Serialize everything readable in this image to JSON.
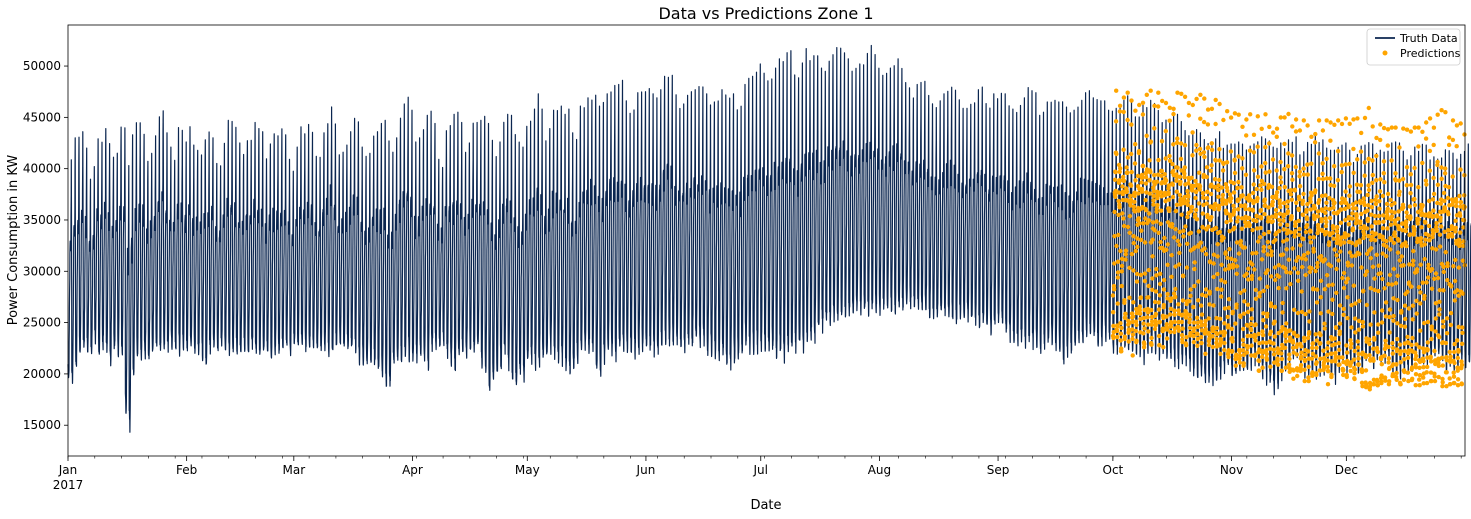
{
  "chart_data": {
    "type": "line",
    "title": "Data vs Predictions Zone 1",
    "xlabel": "Date",
    "ylabel": "Power Consumption in KW",
    "ylim": [
      12000,
      54000
    ],
    "yticks": [
      15000,
      20000,
      25000,
      30000,
      35000,
      40000,
      45000,
      50000
    ],
    "xlim": [
      "2017-01-01",
      "2017-12-31"
    ],
    "xticks": [
      {
        "date": "2017-01-01",
        "label": "Jan",
        "sublabel": "2017"
      },
      {
        "date": "2017-02-01",
        "label": "Feb",
        "sublabel": ""
      },
      {
        "date": "2017-03-01",
        "label": "Mar",
        "sublabel": ""
      },
      {
        "date": "2017-04-01",
        "label": "Apr",
        "sublabel": ""
      },
      {
        "date": "2017-05-01",
        "label": "May",
        "sublabel": ""
      },
      {
        "date": "2017-06-01",
        "label": "Jun",
        "sublabel": ""
      },
      {
        "date": "2017-07-01",
        "label": "Jul",
        "sublabel": ""
      },
      {
        "date": "2017-08-01",
        "label": "Aug",
        "sublabel": ""
      },
      {
        "date": "2017-09-01",
        "label": "Sep",
        "sublabel": ""
      },
      {
        "date": "2017-10-01",
        "label": "Oct",
        "sublabel": ""
      },
      {
        "date": "2017-11-01",
        "label": "Nov",
        "sublabel": ""
      },
      {
        "date": "2017-12-01",
        "label": "Dec",
        "sublabel": ""
      }
    ],
    "legend": {
      "placement": "top-right"
    },
    "series": [
      {
        "name": "Truth Data",
        "style": "line",
        "color": "#0b2650",
        "date_range": [
          "2017-01-01",
          "2017-12-31"
        ],
        "daily_min": [
          18500,
          18200,
          19800,
          21300,
          21700,
          21700,
          21200,
          22600,
          21100,
          21900,
          21200,
          20500,
          21600,
          21300,
          21200,
          15500,
          14000,
          18900,
          20500,
          20800,
          20900,
          20500,
          21100,
          21700,
          21300,
          21500,
          21600,
          21800,
          21500,
          21500,
          21800,
          21600,
          21600,
          21600,
          21300,
          20800,
          19800,
          21700,
          22000,
          21700,
          22000,
          21200,
          21200,
          21300,
          21300,
          21000,
          21500,
          21300,
          22000,
          21300,
          21000,
          21300,
          21700,
          20800,
          21100,
          21300,
          21800,
          22300,
          21200,
          22100,
          21800,
          21900,
          21600,
          21900,
          22200,
          21600,
          21500,
          21500,
          21200,
          21300,
          21800,
          22100,
          21800,
          21700,
          21800,
          21800,
          20500,
          20300,
          20400,
          20300,
          19900,
          19500,
          18600,
          18100,
          18100,
          20400,
          20500,
          20300,
          20700,
          20800,
          20500,
          20700,
          20800,
          20600,
          20000,
          21800,
          21900,
          22200,
          22000,
          21000,
          20100,
          19300,
          20800,
          21500,
          21200,
          21500,
          21400,
          21700,
          20200,
          19200,
          17300,
          18700,
          19300,
          19700,
          21100,
          19700,
          18700,
          17800,
          19400,
          18800,
          20400,
          20400,
          19800,
          20000,
          20600,
          20600,
          21300,
          20700,
          20500,
          20200,
          19300,
          19300,
          19700,
          20300,
          20900,
          21400,
          21300,
          21100,
          19300,
          19000,
          20500,
          20900,
          20900,
          20900,
          21100,
          21300,
          21500,
          21300,
          21000,
          21100,
          21200,
          21100,
          21200,
          21300,
          21200,
          21700,
          22400,
          22200,
          22000,
          22400,
          21900,
          21700,
          21800,
          22000,
          22000,
          21800,
          22000,
          21300,
          21100,
          20800,
          20700,
          20600,
          20100,
          20000,
          20200,
          20600,
          21300,
          21600,
          21600,
          21300,
          21500,
          21700,
          21700,
          21300,
          21200,
          20700,
          20900,
          20200,
          20800,
          21300,
          21100,
          21700,
          21300,
          22300,
          22500,
          22600,
          23100,
          23500,
          23900,
          24100,
          24300,
          24300,
          24500,
          24600,
          24800,
          25200,
          25400,
          25300,
          25000,
          25000,
          25200,
          25000,
          25400,
          25500,
          25700,
          25400,
          25300,
          25400,
          25600,
          25800,
          25900,
          25600,
          25500,
          25500,
          25300,
          24800,
          24800,
          24700,
          25300,
          25100,
          25100,
          24600,
          24200,
          24700,
          24500,
          24700,
          24300,
          24200,
          23800,
          23900,
          23600,
          23400,
          23700,
          24000,
          23800,
          23400,
          22800,
          22400,
          22100,
          22300,
          22200,
          22300,
          22000,
          21700,
          21300,
          21600,
          21900,
          22000,
          21500,
          21200,
          20300,
          20900,
          21200,
          21800,
          22100,
          21900,
          22500,
          23000,
          22400,
          22100,
          22000,
          22700,
          22500,
          21700,
          21300,
          21500,
          21900,
          21400,
          20900,
          21300,
          21000,
          20600,
          21100,
          21600,
          21300,
          21000,
          20900,
          20600,
          20700,
          20000,
          20100,
          20300,
          20500,
          19700,
          19000,
          18600,
          19200,
          18300,
          18300,
          18400,
          18300,
          18800,
          19400,
          19800,
          19000,
          19000,
          19200,
          19200,
          19300,
          20100,
          20500,
          19400,
          19200,
          18600,
          18200,
          17600,
          17600,
          18600,
          19600,
          19900,
          20500,
          20800,
          19900,
          19000,
          18900,
          19300,
          19200,
          19400,
          19300,
          19300,
          18700,
          18700,
          19400,
          19900,
          19600,
          20100,
          19400,
          19200,
          19700,
          20300,
          20300,
          19800,
          20500,
          20000,
          20400,
          20500,
          19400,
          19000,
          19100,
          19600,
          19400,
          19700,
          20100,
          20500,
          20400,
          20100,
          20800,
          21300,
          21000,
          20500,
          19700,
          19900,
          19700,
          19800,
          20300,
          20000,
          20100,
          20400,
          20600,
          20800,
          20500,
          20600,
          20500,
          20200,
          19800,
          19700,
          19700,
          19500,
          19700,
          20100,
          19900,
          19700
        ],
        "daily_max": [
          40900,
          43000,
          43100,
          43600,
          42000,
          39100,
          40200,
          42900,
          42700,
          43900,
          42800,
          41600,
          41800,
          44100,
          44300,
          40300,
          43300,
          44500,
          45200,
          44000,
          41300,
          42100,
          43200,
          45400,
          46200,
          43500,
          42100,
          41300,
          44000,
          44100,
          42600,
          44300,
          42300,
          41900,
          41900,
          43100,
          44200,
          43300,
          40500,
          40300,
          42800,
          44700,
          44600,
          44200,
          42500,
          41900,
          43000,
          43300,
          44500,
          43900,
          43600,
          41300,
          42400,
          43400,
          43200,
          43900,
          43300,
          40900,
          40300,
          42100,
          44200,
          43400,
          44300,
          43700,
          41200,
          41100,
          43500,
          44900,
          46600,
          44500,
          41800,
          41600,
          42900,
          43600,
          44900,
          44600,
          42100,
          41200,
          41600,
          43500,
          44200,
          44400,
          44700,
          42700,
          41600,
          43000,
          45400,
          46300,
          47400,
          45700,
          42600,
          43000,
          43800,
          45200,
          45600,
          44400,
          40900,
          40300,
          43900,
          44200,
          45300,
          45500,
          44500,
          42100,
          42500,
          44600,
          44500,
          44700,
          45300,
          44400,
          43300,
          41600,
          42600,
          44600,
          45300,
          45200,
          43700,
          42600,
          42100,
          44500,
          44800,
          45800,
          47300,
          45800,
          43100,
          43900,
          45700,
          46400,
          46100,
          45300,
          45800,
          43500,
          43300,
          46100,
          46500,
          46900,
          47400,
          47200,
          46100,
          46500,
          47800,
          48000,
          48100,
          48200,
          48600,
          46600,
          45400,
          46400,
          47400,
          48200,
          47500,
          47800,
          47300,
          46900,
          47700,
          49000,
          49500,
          49100,
          47200,
          46300,
          46300,
          47300,
          47500,
          47700,
          48000,
          48400,
          47400,
          46200,
          46500,
          47000,
          47700,
          47200,
          47100,
          47300,
          46300,
          46400,
          48200,
          48800,
          49000,
          49400,
          50200,
          49300,
          48600,
          49100,
          49800,
          50700,
          51000,
          51300,
          51500,
          49200,
          49300,
          50300,
          51700,
          51400,
          51200,
          51000,
          49800,
          49700,
          50800,
          51300,
          51800,
          51900,
          51400,
          50700,
          49500,
          49800,
          50200,
          50700,
          51300,
          52000,
          51600,
          50400,
          49100,
          49300,
          49800,
          50400,
          50700,
          50300,
          48600,
          48200,
          47500,
          48200,
          48400,
          48500,
          47800,
          46700,
          46300,
          46600,
          47300,
          47800,
          48300,
          48200,
          46700,
          45900,
          46200,
          46500,
          47000,
          47700,
          48200,
          46900,
          45900,
          47300,
          47500,
          47800,
          47300,
          46600,
          45800,
          45900,
          46800,
          47200,
          47900,
          47600,
          47400,
          45200,
          45500,
          46500,
          47200,
          47000,
          46500,
          46600,
          46000,
          45700,
          45700,
          46400,
          47300,
          47400,
          47600,
          46900,
          46900,
          46600,
          46600,
          45700,
          45600,
          46000,
          46500,
          46700,
          47100,
          46900,
          45500,
          45500,
          46200,
          46300,
          46700,
          47000,
          46400,
          45200,
          44900,
          45100,
          45500,
          45300,
          44700,
          44000,
          43300,
          43500,
          43900,
          43500,
          43100,
          42600,
          42900,
          43000,
          43600,
          42600,
          42300,
          42400,
          42600,
          42600,
          42900,
          42300,
          42200,
          42400,
          42700,
          43100,
          42900,
          42700,
          42100,
          42000,
          42500,
          42300,
          42800,
          43100,
          43100,
          41500,
          41900,
          42800,
          43100,
          43300,
          43200,
          42800,
          42000,
          41800,
          41800,
          42300,
          42300,
          42500,
          41800,
          40600,
          41400,
          42200,
          42300,
          42600,
          42400,
          41500,
          41800,
          42100,
          42300,
          42500,
          42600,
          42500,
          41700,
          41500,
          41900,
          42100,
          42300,
          42500,
          42300,
          41300,
          41600,
          41400,
          41500,
          42000,
          42200,
          41800,
          41000,
          41400,
          42300,
          42400,
          42600,
          42300,
          41000,
          40700,
          41100,
          41400,
          41700,
          41400,
          40800,
          39000,
          38500,
          38900,
          39600,
          40700,
          41800
        ]
      },
      {
        "name": "Predictions",
        "style": "markers",
        "color": "#ffa500",
        "date_range": [
          "2017-10-01",
          "2017-12-31"
        ],
        "daily_min": [
          23500,
          23600,
          22200,
          23400,
          22000,
          21800,
          23100,
          23800,
          22600,
          23600,
          22400,
          23400,
          22800,
          22600,
          23200,
          23800,
          23900,
          23400,
          23100,
          22800,
          23200,
          23100,
          22500,
          23000,
          21800,
          22600,
          22100,
          22400,
          21600,
          21900,
          21600,
          21400,
          20800,
          21100,
          20800,
          21400,
          21800,
          21200,
          20300,
          20600,
          20600,
          20700,
          21100,
          20900,
          20300,
          20600,
          19700,
          19300,
          19800,
          19600,
          19300,
          19300,
          19800,
          19900,
          20100,
          19800,
          19000,
          19600,
          19300,
          20000,
          19800,
          19700,
          19700,
          19500,
          19200,
          18800,
          18700,
          18500,
          19000,
          18900,
          19100,
          19300,
          19000,
          19300,
          19200,
          19000,
          19000,
          19300,
          19400,
          18900,
          18900,
          19000,
          19100,
          19300,
          19300,
          19200,
          18800,
          18800,
          19000,
          19100,
          18900,
          19000
        ],
        "daily_max": [
          47600,
          47300,
          47000,
          47400,
          46900,
          46300,
          46200,
          46800,
          47200,
          47600,
          47500,
          47400,
          46600,
          46400,
          46800,
          47300,
          47400,
          47300,
          47000,
          46700,
          46200,
          46800,
          47200,
          47400,
          47300,
          46900,
          46700,
          46300,
          45500,
          45600,
          45400,
          45400,
          45300,
          45200,
          45300,
          45300,
          45100,
          45100,
          45300,
          45300,
          45100,
          45300,
          45100,
          45000,
          45000,
          45400,
          45300,
          45300,
          45000,
          44700,
          44700,
          45000,
          44900,
          44700,
          44500,
          44700,
          44500,
          44600,
          44700,
          44600,
          44900,
          44700,
          44800,
          44900,
          44900,
          45400,
          46100,
          45500,
          44700,
          44300,
          44400,
          44100,
          44000,
          44000,
          43900,
          43900,
          43800,
          43800,
          44000,
          44000,
          44200,
          44500,
          44900,
          45200,
          45400,
          45700,
          45500,
          45100,
          44700,
          44500,
          44400,
          44200
        ]
      }
    ]
  }
}
